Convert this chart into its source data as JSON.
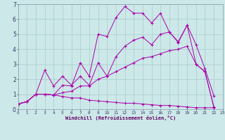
{
  "background_color": "#cce8e8",
  "grid_color": "#aacccc",
  "line_color": "#aa00aa",
  "xlabel": "Windchill (Refroidissement éolien,°C)",
  "xlim": [
    0,
    23
  ],
  "ylim": [
    0,
    7
  ],
  "xticks": [
    0,
    1,
    2,
    3,
    4,
    5,
    6,
    7,
    8,
    9,
    10,
    11,
    12,
    13,
    14,
    15,
    16,
    17,
    18,
    19,
    20,
    21,
    22,
    23
  ],
  "yticks": [
    0,
    1,
    2,
    3,
    4,
    5,
    6,
    7
  ],
  "series": [
    {
      "x": [
        0,
        1,
        2,
        3,
        4,
        5,
        6,
        7,
        8,
        9,
        10,
        11,
        12,
        13,
        14,
        15,
        16,
        17,
        18,
        19,
        20,
        21,
        22
      ],
      "y": [
        0.35,
        0.5,
        1.0,
        1.0,
        0.95,
        1.6,
        1.55,
        3.1,
        2.2,
        5.0,
        4.85,
        6.1,
        6.85,
        6.4,
        6.4,
        5.75,
        6.4,
        5.15,
        4.45,
        5.6,
        4.3,
        2.7,
        0.9
      ]
    },
    {
      "x": [
        0,
        1,
        2,
        3,
        4,
        5,
        6,
        7,
        8,
        9,
        10,
        11,
        12,
        13,
        14,
        15,
        16,
        17,
        18,
        19,
        20,
        21,
        22
      ],
      "y": [
        0.35,
        0.5,
        1.0,
        2.6,
        1.55,
        2.2,
        1.6,
        2.2,
        1.6,
        3.1,
        2.2,
        3.5,
        4.2,
        4.6,
        4.8,
        4.3,
        5.0,
        5.15,
        4.5,
        5.6,
        3.0,
        2.5,
        0.15
      ]
    },
    {
      "x": [
        0,
        1,
        2,
        3,
        4,
        5,
        6,
        7,
        8,
        9,
        10,
        11,
        12,
        13,
        14,
        15,
        16,
        17,
        18,
        19,
        20,
        21,
        22
      ],
      "y": [
        0.35,
        0.5,
        1.0,
        1.0,
        0.95,
        0.85,
        0.75,
        0.75,
        0.6,
        0.55,
        0.5,
        0.45,
        0.4,
        0.4,
        0.35,
        0.3,
        0.25,
        0.25,
        0.2,
        0.15,
        0.1,
        0.1,
        0.1
      ]
    },
    {
      "x": [
        0,
        1,
        2,
        3,
        4,
        5,
        6,
        7,
        8,
        9,
        10,
        11,
        12,
        13,
        14,
        15,
        16,
        17,
        18,
        19,
        20,
        21,
        22
      ],
      "y": [
        0.35,
        0.5,
        1.0,
        1.0,
        0.95,
        1.1,
        1.2,
        1.55,
        1.55,
        2.0,
        2.2,
        2.5,
        2.8,
        3.1,
        3.4,
        3.5,
        3.7,
        3.9,
        4.0,
        4.2,
        3.0,
        2.5,
        0.15
      ]
    }
  ]
}
